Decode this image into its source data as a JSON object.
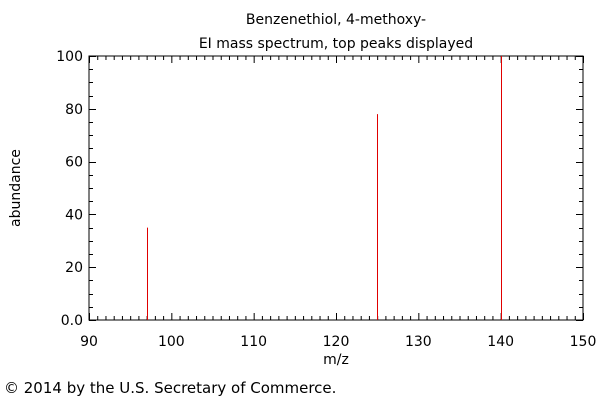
{
  "chart_data": {
    "type": "bar",
    "title": [
      "Benzenethiol, 4-methoxy-",
      "EI mass spectrum, top peaks displayed"
    ],
    "xlabel": "m/z",
    "ylabel": "abundance",
    "xlim": [
      90,
      150
    ],
    "ylim": [
      0,
      100
    ],
    "x_ticks": [
      90,
      100,
      110,
      120,
      130,
      140,
      150
    ],
    "y_ticks": [
      0,
      20,
      40,
      60,
      80,
      100
    ],
    "y_tick_labels": [
      "0.0",
      "20",
      "40",
      "60",
      "80",
      "100"
    ],
    "grid": false,
    "peak_color": "#e00000",
    "peaks": [
      {
        "x": 97,
        "y": 35
      },
      {
        "x": 125,
        "y": 78
      },
      {
        "x": 140,
        "y": 100
      }
    ]
  },
  "footer": {
    "copyright": "© 2014 by the U.S. Secretary of Commerce."
  }
}
